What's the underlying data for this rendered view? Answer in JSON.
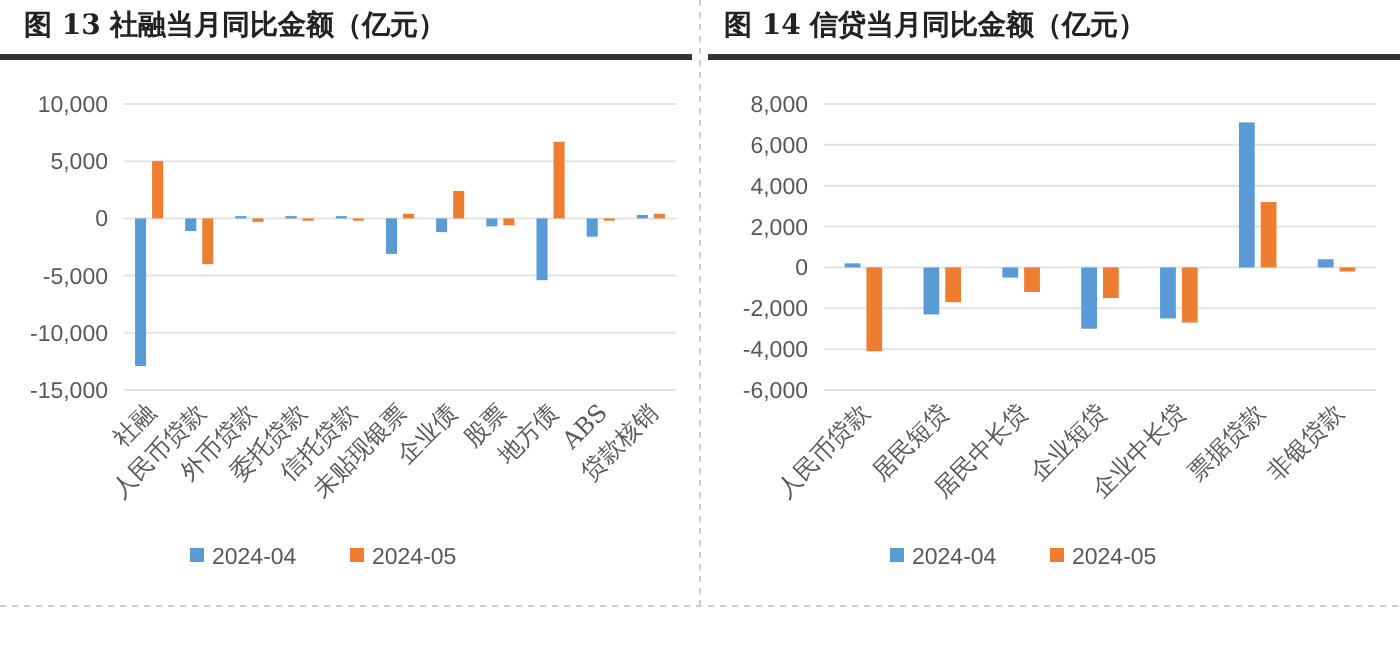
{
  "chart_data": [
    {
      "type": "bar",
      "title": "图 13 社融当月同比金额（亿元）",
      "categories": [
        "社融",
        "人民币贷款",
        "外币贷款",
        "委托贷款",
        "信托贷款",
        "未贴现银票",
        "企业债",
        "股票",
        "地方债",
        "ABS",
        "贷款核销"
      ],
      "series": [
        {
          "name": "2024-04",
          "color": "#5b9bd5",
          "values": [
            -12900,
            -1100,
            200,
            200,
            200,
            -3100,
            -1200,
            -700,
            -5400,
            -1600,
            300
          ]
        },
        {
          "name": "2024-05",
          "color": "#ed7d31",
          "values": [
            5000,
            -4000,
            -300,
            -200,
            -200,
            400,
            2400,
            -600,
            6700,
            -200,
            400
          ]
        }
      ],
      "ylim": [
        -15000,
        10000
      ],
      "yticks": [
        {
          "value": -15000,
          "label": "-15,000"
        },
        {
          "value": -10000,
          "label": "-10,000"
        },
        {
          "value": -5000,
          "label": "-5,000"
        },
        0,
        {
          "value": 5000,
          "label": "5,000"
        },
        {
          "value": 10000,
          "label": "10,000"
        }
      ],
      "grid": "y",
      "legend": "bottom"
    },
    {
      "type": "bar",
      "title": "图 14 信贷当月同比金额（亿元）",
      "categories": [
        "人民币贷款",
        "居民短贷",
        "居民中长贷",
        "企业短贷",
        "企业中长贷",
        "票据贷款",
        "非银贷款"
      ],
      "series": [
        {
          "name": "2024-04",
          "color": "#5b9bd5",
          "values": [
            200,
            -2300,
            -500,
            -3000,
            -2500,
            7100,
            400
          ]
        },
        {
          "name": "2024-05",
          "color": "#ed7d31",
          "values": [
            -4100,
            -1700,
            -1200,
            -1500,
            -2700,
            3200,
            -200
          ]
        }
      ],
      "ylim": [
        -6000,
        8000
      ],
      "yticks": [
        {
          "value": -6000,
          "label": "-6,000"
        },
        {
          "value": -4000,
          "label": "-4,000"
        },
        {
          "value": -2000,
          "label": "-2,000"
        },
        0,
        {
          "value": 2000,
          "label": "2,000"
        },
        {
          "value": 4000,
          "label": "4,000"
        },
        {
          "value": 6000,
          "label": "6,000"
        },
        {
          "value": 8000,
          "label": "8,000"
        }
      ],
      "grid": "y",
      "legend": "bottom"
    }
  ]
}
